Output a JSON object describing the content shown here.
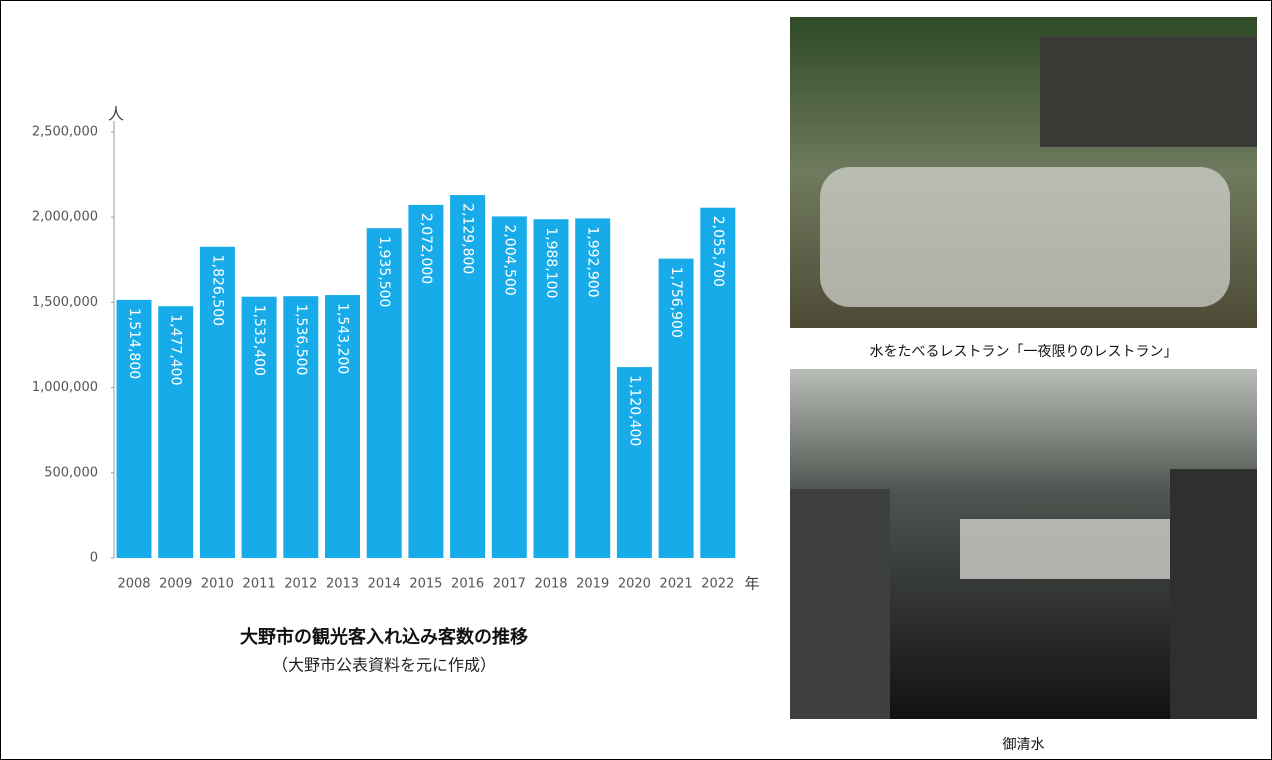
{
  "chart_data": {
    "type": "bar",
    "title": "大野市の観光客入れ込み客数の推移",
    "subtitle": "（大野市公表資料を元に作成）",
    "y_unit": "人",
    "x_unit": "年",
    "categories": [
      "2008",
      "2009",
      "2010",
      "2011",
      "2012",
      "2013",
      "2014",
      "2015",
      "2016",
      "2017",
      "2018",
      "2019",
      "2020",
      "2021",
      "2022"
    ],
    "values": [
      1514800,
      1477400,
      1826500,
      1533400,
      1536500,
      1543200,
      1935500,
      2072000,
      2129800,
      2004500,
      1988100,
      1992900,
      1120400,
      1756900,
      2055700
    ],
    "value_labels": [
      "1,514,800",
      "1,477,400",
      "1,826,500",
      "1,533,400",
      "1,536,500",
      "1,543,200",
      "1,935,500",
      "2,072,000",
      "2,129,800",
      "2,004,500",
      "1,988,100",
      "1,992,900",
      "1,120,400",
      "1,756,900",
      "2,055,700"
    ],
    "color": "#17ace9",
    "ylim": [
      0,
      2500000
    ],
    "yticks": [
      0,
      {
        "value": 500000,
        "label": "500,000"
      },
      {
        "value": 1000000,
        "label": "1,000,000"
      },
      {
        "value": 1500000,
        "label": "1,500,000"
      },
      {
        "value": 2000000,
        "label": "2,000,000"
      },
      {
        "value": 2500000,
        "label": "2,500,000"
      }
    ],
    "grid": false
  },
  "images": [
    {
      "caption": "水をたべるレストラン「一夜限りのレストラン」"
    },
    {
      "caption": "御清水"
    }
  ]
}
